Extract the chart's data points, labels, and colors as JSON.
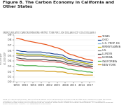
{
  "title": "Figure 8. The Carbon Economy in California and\nOther States",
  "subtitle": "ENERGY-RELATED CARBON EMISSIONS (METRIC TONS PER 1,000 DOLLARS GDP (2014 DOLLARS))",
  "years": [
    1990,
    1991,
    1992,
    1993,
    1994,
    1995,
    1996,
    1997,
    1998,
    1999,
    2000,
    2001,
    2002,
    2003,
    2004,
    2005,
    2006,
    2007,
    2008,
    2009,
    2010,
    2011,
    2012,
    2013,
    2014,
    2015,
    2016,
    2017,
    2018
  ],
  "series": [
    {
      "name": "TEXAS",
      "color": "#e8541a",
      "lw": 0.9,
      "values": [
        0.83,
        0.82,
        0.81,
        0.79,
        0.78,
        0.77,
        0.76,
        0.75,
        0.74,
        0.73,
        0.72,
        0.71,
        0.69,
        0.68,
        0.66,
        0.65,
        0.63,
        0.61,
        0.57,
        0.54,
        0.52,
        0.51,
        0.49,
        0.47,
        0.46,
        0.44,
        0.43,
        0.42,
        0.41
      ]
    },
    {
      "name": "OHIO",
      "color": "#1a3f8f",
      "lw": 0.8,
      "values": [
        0.6,
        0.59,
        0.58,
        0.58,
        0.57,
        0.57,
        0.57,
        0.57,
        0.57,
        0.57,
        0.56,
        0.55,
        0.55,
        0.54,
        0.53,
        0.53,
        0.52,
        0.51,
        0.48,
        0.45,
        0.44,
        0.43,
        0.42,
        0.41,
        0.4,
        0.39,
        0.38,
        0.37,
        0.37
      ]
    },
    {
      "name": "U.S. PROP. D4",
      "color": "#7ab4d8",
      "lw": 0.8,
      "values": [
        0.55,
        0.54,
        0.54,
        0.53,
        0.53,
        0.53,
        0.53,
        0.53,
        0.53,
        0.53,
        0.52,
        0.51,
        0.5,
        0.5,
        0.49,
        0.49,
        0.48,
        0.47,
        0.44,
        0.41,
        0.41,
        0.4,
        0.39,
        0.38,
        0.37,
        0.36,
        0.35,
        0.34,
        0.33
      ]
    },
    {
      "name": "PENNSYLVANIA",
      "color": "#c8b400",
      "lw": 0.8,
      "values": [
        0.54,
        0.53,
        0.52,
        0.52,
        0.51,
        0.51,
        0.51,
        0.51,
        0.51,
        0.51,
        0.5,
        0.49,
        0.49,
        0.48,
        0.48,
        0.47,
        0.47,
        0.46,
        0.44,
        0.41,
        0.41,
        0.4,
        0.39,
        0.38,
        0.37,
        0.36,
        0.35,
        0.34,
        0.33
      ]
    },
    {
      "name": "U.S.",
      "color": "#888888",
      "lw": 0.8,
      "values": [
        0.51,
        0.5,
        0.5,
        0.49,
        0.49,
        0.49,
        0.49,
        0.49,
        0.49,
        0.49,
        0.48,
        0.47,
        0.47,
        0.46,
        0.46,
        0.45,
        0.45,
        0.44,
        0.41,
        0.38,
        0.38,
        0.37,
        0.36,
        0.35,
        0.34,
        0.33,
        0.32,
        0.31,
        0.3
      ]
    },
    {
      "name": "ILLINOIS",
      "color": "#404040",
      "lw": 0.8,
      "values": [
        0.46,
        0.45,
        0.44,
        0.44,
        0.43,
        0.43,
        0.43,
        0.43,
        0.43,
        0.43,
        0.43,
        0.42,
        0.41,
        0.41,
        0.41,
        0.4,
        0.4,
        0.39,
        0.37,
        0.35,
        0.35,
        0.34,
        0.33,
        0.32,
        0.31,
        0.3,
        0.3,
        0.29,
        0.29
      ]
    },
    {
      "name": "FLORIDA",
      "color": "#d46060",
      "lw": 0.8,
      "values": [
        0.42,
        0.41,
        0.41,
        0.4,
        0.4,
        0.4,
        0.4,
        0.4,
        0.4,
        0.4,
        0.39,
        0.39,
        0.38,
        0.38,
        0.38,
        0.37,
        0.37,
        0.36,
        0.34,
        0.32,
        0.32,
        0.31,
        0.3,
        0.29,
        0.29,
        0.28,
        0.27,
        0.27,
        0.26
      ]
    },
    {
      "name": "CALIFORNIA",
      "color": "#50b050",
      "lw": 0.9,
      "values": [
        0.33,
        0.32,
        0.32,
        0.31,
        0.31,
        0.31,
        0.31,
        0.31,
        0.3,
        0.3,
        0.3,
        0.29,
        0.29,
        0.29,
        0.29,
        0.28,
        0.28,
        0.27,
        0.26,
        0.24,
        0.24,
        0.23,
        0.22,
        0.21,
        0.21,
        0.2,
        0.19,
        0.19,
        0.18
      ]
    },
    {
      "name": "NEW YORK",
      "color": "#d4a020",
      "lw": 0.9,
      "values": [
        0.22,
        0.21,
        0.21,
        0.21,
        0.21,
        0.21,
        0.21,
        0.21,
        0.21,
        0.21,
        0.21,
        0.2,
        0.2,
        0.2,
        0.2,
        0.19,
        0.19,
        0.19,
        0.18,
        0.16,
        0.16,
        0.15,
        0.15,
        0.14,
        0.14,
        0.13,
        0.13,
        0.13,
        0.13
      ]
    }
  ],
  "ylim": [
    0.0,
    0.9
  ],
  "yticks": [
    0.0,
    0.1,
    0.2,
    0.3,
    0.4,
    0.5,
    0.6,
    0.7,
    0.8,
    0.9
  ],
  "xticks": [
    1990,
    1993,
    1996,
    1999,
    2002,
    2005,
    2008,
    2011,
    2014,
    2017
  ],
  "xlim": [
    1989,
    2019
  ],
  "note": "NOTE: PA Cap-and-Other RGGI) would not have applied. Note that emissions and time allow for state-level comparisons shows the Energy\nInformation Administration and is based on carbon emissions (Scope2 Sector breakdown). Therefore, regional program states (like\nassociated in other charts) of historical emissions for California. Data Source: Energy Information Administration, U.S. Department of Energy;\nBureau of Economic Analysis, U.S. Department of Commerce.",
  "bg_color": "#ffffff",
  "title_color": "#222222",
  "subtitle_color": "#666666",
  "note_color": "#777777",
  "axis_color": "#aaaaaa"
}
